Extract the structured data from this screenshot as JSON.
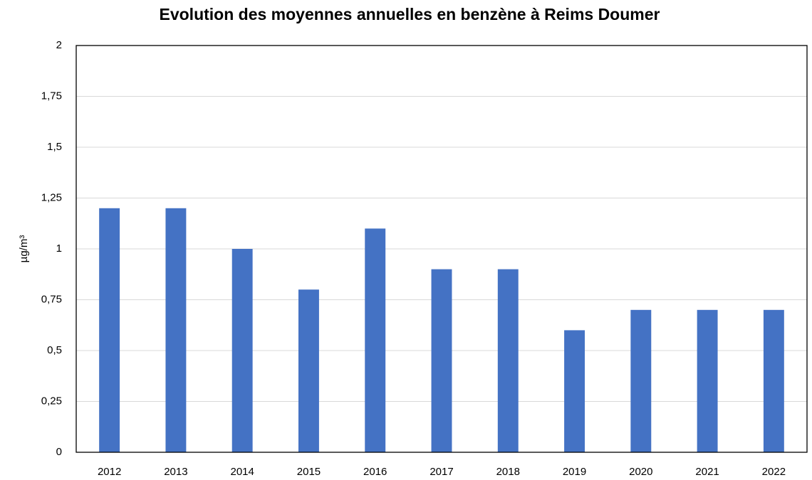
{
  "chart_data": {
    "type": "bar",
    "title": "Evolution des moyennes annuelles en benzène à Reims Doumer",
    "y_label": "µg/m³",
    "categories": [
      "2012",
      "2013",
      "2014",
      "2015",
      "2016",
      "2017",
      "2018",
      "2019",
      "2020",
      "2021",
      "2022"
    ],
    "values": [
      1.2,
      1.2,
      1.0,
      0.8,
      1.1,
      0.9,
      0.9,
      0.6,
      0.7,
      0.7,
      0.7
    ],
    "color": "#4472c4",
    "ylim": [
      0,
      2
    ],
    "yticks": [
      0,
      {
        "value": 0.25,
        "label": "0,25"
      },
      {
        "value": 0.5,
        "label": "0,5"
      },
      {
        "value": 0.75,
        "label": "0,75"
      },
      1,
      {
        "value": 1.25,
        "label": "1,25"
      },
      {
        "value": 1.5,
        "label": "1,5"
      },
      {
        "value": 1.75,
        "label": "1,75"
      },
      2
    ],
    "grid": true
  }
}
